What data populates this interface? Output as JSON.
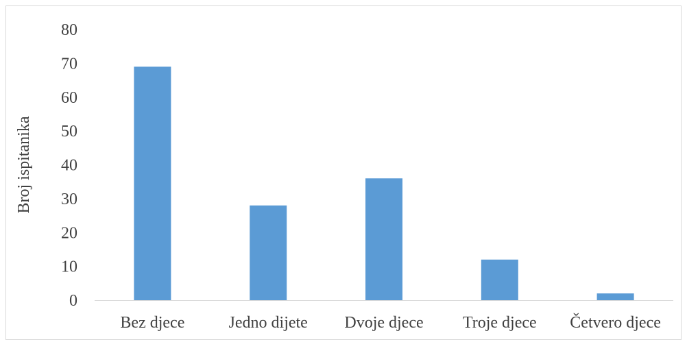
{
  "chart_data": {
    "type": "bar",
    "title": "",
    "xlabel": "",
    "ylabel": "Broj ispitanika",
    "ylim": [
      0,
      80
    ],
    "yticks": [
      0,
      10,
      20,
      30,
      40,
      50,
      60,
      70,
      80
    ],
    "grid": false,
    "legend": "none",
    "categories": [
      "Bez djece",
      "Jedno dijete",
      "Dvoje djece",
      "Troje djece",
      "Četvero djece"
    ],
    "values": [
      69,
      28,
      36,
      12,
      2
    ],
    "bar_color": "#5b9bd5",
    "axis_color": "#d9d9d9"
  }
}
